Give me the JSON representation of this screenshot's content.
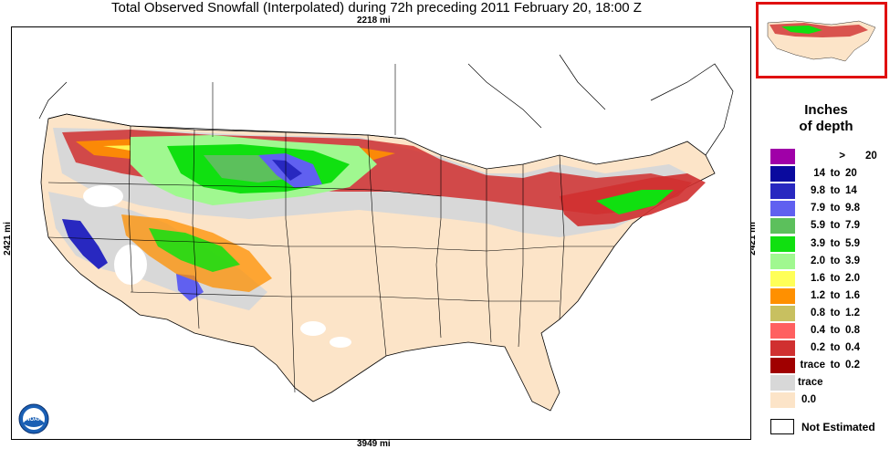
{
  "title": "Total Observed Snowfall (Interpolated) during 72h preceding 2011 February 20, 18:00 Z",
  "dimensions": {
    "top": "2218 mi",
    "bottom": "3949 mi",
    "left": "2421 mi",
    "right": "2421 mi"
  },
  "legend": {
    "title_line1": "Inches",
    "title_line2": "of depth",
    "items": [
      {
        "lo": ">",
        "to": "",
        "hi": "20",
        "color": "#a000a8"
      },
      {
        "lo": "14",
        "to": "to",
        "hi": "20",
        "color": "#0a0a9e"
      },
      {
        "lo": "9.8",
        "to": "to",
        "hi": "14",
        "color": "#2828c0"
      },
      {
        "lo": "7.9",
        "to": "to",
        "hi": "9.8",
        "color": "#6060f0"
      },
      {
        "lo": "5.9",
        "to": "to",
        "hi": "7.9",
        "color": "#5cc05c"
      },
      {
        "lo": "3.9",
        "to": "to",
        "hi": "5.9",
        "color": "#10e010"
      },
      {
        "lo": "2.0",
        "to": "to",
        "hi": "3.9",
        "color": "#a0f890"
      },
      {
        "lo": "1.6",
        "to": "to",
        "hi": "2.0",
        "color": "#ffff58"
      },
      {
        "lo": "1.2",
        "to": "to",
        "hi": "1.6",
        "color": "#ff9000"
      },
      {
        "lo": "0.8",
        "to": "to",
        "hi": "1.2",
        "color": "#c8c060"
      },
      {
        "lo": "0.4",
        "to": "to",
        "hi": "0.8",
        "color": "#ff6060"
      },
      {
        "lo": "0.2",
        "to": "to",
        "hi": "0.4",
        "color": "#d03030"
      },
      {
        "lo": "trace",
        "to": "to",
        "hi": "0.2",
        "color": "#a00000"
      },
      {
        "lo": "trace",
        "to": "",
        "hi": "",
        "color": "#d8d8d8"
      },
      {
        "lo": "0.0",
        "to": "",
        "hi": "",
        "color": "#fce4c8"
      }
    ],
    "not_estimated": "Not Estimated"
  },
  "logo": {
    "text": "NOAA",
    "icon": "noaa-logo"
  }
}
